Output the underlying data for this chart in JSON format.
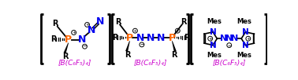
{
  "bg_color": "#ffffff",
  "panel1_label": "[B(C₆F₅)₄]",
  "panel2_label": "[B(C₆F₅)₄]",
  "panel3_label": "[B(C₆F₅)₄]",
  "label_color": "#cc00cc",
  "P_color": "#ff6600",
  "N_color": "#0000ee",
  "black": "#000000"
}
